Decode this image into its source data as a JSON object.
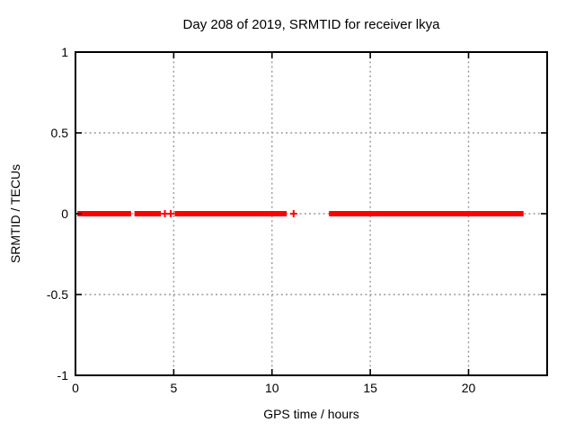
{
  "title": "Day 208 of 2019, SRMTID for receiver lkya",
  "chart_data": {
    "type": "scatter",
    "marker": "plus",
    "title": "Day 208 of 2019, SRMTID for receiver lkya",
    "xlabel": "GPS time / hours",
    "ylabel": "SRMTID / TECUs",
    "xlim": [
      0,
      24
    ],
    "ylim": [
      -1,
      1
    ],
    "xticks": [
      0,
      5,
      10,
      15,
      20
    ],
    "xtick_labels": [
      "0",
      "5",
      "10",
      "15",
      "20"
    ],
    "yticks": [
      1,
      0.5,
      0,
      -0.5,
      -1
    ],
    "ytick_labels": [
      "1",
      "0.5",
      "0",
      "-0.5",
      "-1"
    ],
    "grid": true,
    "legend": "none",
    "series_name": "SRMTID",
    "segments": [
      {
        "x_start": 0.1,
        "x_end": 2.83,
        "y": 0
      },
      {
        "x_start": 3.0,
        "x_end": 4.35,
        "y": 0
      },
      {
        "x_start": 5.05,
        "x_end": 10.75,
        "y": 0
      },
      {
        "x_start": 12.9,
        "x_end": 22.8,
        "y": 0
      }
    ],
    "isolated_points": [
      {
        "x": 4.55,
        "y": 0
      },
      {
        "x": 4.85,
        "y": 0
      },
      {
        "x": 11.1,
        "y": 0
      }
    ],
    "colors": {
      "data": "#ff0000",
      "grid": "#999999",
      "axis": "#000000",
      "background": "#ffffff",
      "text": "#000000"
    }
  }
}
